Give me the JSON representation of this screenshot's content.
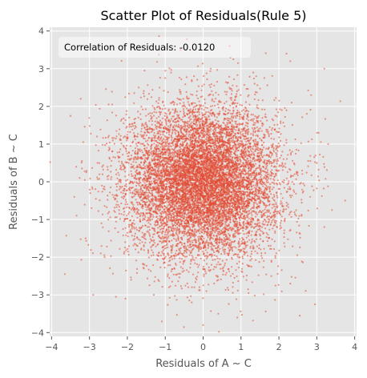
{
  "chart_data": {
    "type": "scatter",
    "title": "Scatter Plot of Residuals(Rule 5)",
    "xlabel": "Residuals of A ~ C",
    "ylabel": "Residuals of B ~ C",
    "xlim": [
      -4.05,
      4.05
    ],
    "ylim": [
      -4.1,
      4.1
    ],
    "xticks": [
      -4,
      -3,
      -2,
      -1,
      0,
      1,
      2,
      3,
      4
    ],
    "yticks": [
      -4,
      -3,
      -2,
      -1,
      0,
      1,
      2,
      3,
      4
    ],
    "xtick_labels": [
      "−4",
      "−3",
      "−2",
      "−1",
      "0",
      "1",
      "2",
      "3",
      "4"
    ],
    "ytick_labels": [
      "−4",
      "−3",
      "−2",
      "−1",
      "0",
      "1",
      "2",
      "3",
      "4"
    ],
    "grid": true,
    "annotation": "Correlation of Residuals: -0.0120",
    "annotation_position": "top-left",
    "series": [
      {
        "color": "#e24a33",
        "distribution": "bivariate normal, mean ≈ (0, 0), std ≈ 1 per axis",
        "approx_point_count": 10000,
        "correlation": -0.012,
        "points": [
          [
            -3.65,
            -2.45
          ],
          [
            -3.5,
            1.75
          ],
          [
            -3.4,
            -0.4
          ],
          [
            -3.2,
            0.55
          ],
          [
            -3.1,
            -1.5
          ],
          [
            -2.9,
            -3.0
          ],
          [
            -2.8,
            1.2
          ],
          [
            -2.6,
            -2.0
          ],
          [
            -2.3,
            -3.05
          ],
          [
            -2.4,
            2.05
          ],
          [
            -2.05,
            -3.1
          ],
          [
            -1.9,
            -2.6
          ],
          [
            -1.7,
            2.5
          ],
          [
            -1.3,
            -3.0
          ],
          [
            -1.0,
            2.75
          ],
          [
            -0.6,
            3.5
          ],
          [
            -0.9,
            -2.8
          ],
          [
            -0.3,
            -3.2
          ],
          [
            0.2,
            3.0
          ],
          [
            0.0,
            -3.8
          ],
          [
            0.4,
            -3.5
          ],
          [
            0.7,
            3.6
          ],
          [
            0.9,
            -3.6
          ],
          [
            1.2,
            -2.95
          ],
          [
            1.4,
            2.8
          ],
          [
            1.8,
            -2.5
          ],
          [
            2.2,
            3.4
          ],
          [
            2.3,
            3.2
          ],
          [
            2.3,
            -2.7
          ],
          [
            2.55,
            -3.55
          ],
          [
            2.6,
            -0.9
          ],
          [
            2.85,
            2.3
          ],
          [
            2.95,
            -3.25
          ],
          [
            3.0,
            0.5
          ],
          [
            3.2,
            -1.2
          ],
          [
            3.3,
            1.0
          ],
          [
            3.4,
            -0.75
          ],
          [
            3.75,
            -0.5
          ],
          [
            3.2,
            3.0
          ],
          [
            2.2,
            1.9
          ],
          [
            -2.1,
            1.55
          ],
          [
            -3.35,
            0.4
          ],
          [
            3.05,
            1.3
          ],
          [
            -2.7,
            -1.9
          ],
          [
            1.6,
            -2.1
          ]
        ]
      }
    ]
  }
}
